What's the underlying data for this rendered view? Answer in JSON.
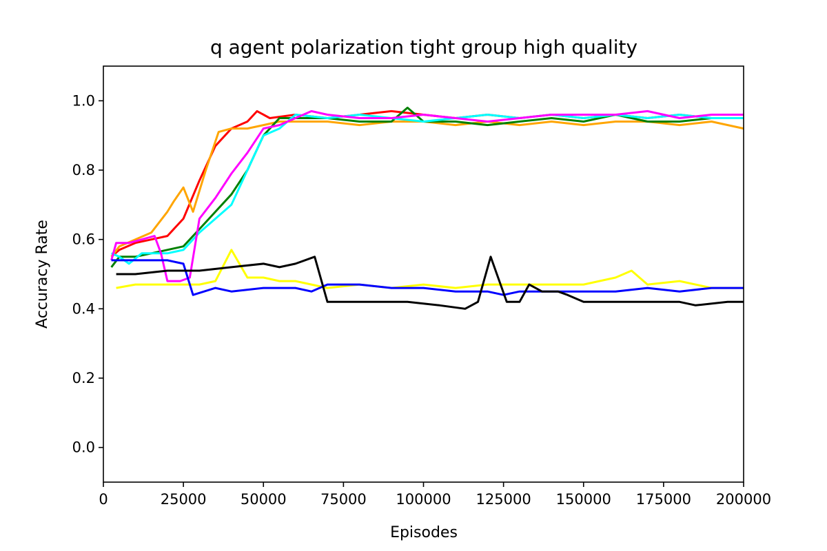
{
  "chart_data": {
    "type": "line",
    "title": "q agent polarization tight group high quality",
    "xlabel": "Episodes",
    "ylabel": "Accuracy Rate",
    "xlim": [
      0,
      200000
    ],
    "ylim": [
      -0.1,
      1.1
    ],
    "xticks": [
      0,
      25000,
      50000,
      75000,
      100000,
      125000,
      150000,
      175000,
      200000
    ],
    "yticks": [
      0.0,
      0.2,
      0.4,
      0.6,
      0.8,
      1.0
    ],
    "grid": false,
    "series": [
      {
        "color": "#ff0000",
        "x": [
          2500,
          5000,
          10000,
          15000,
          20000,
          25000,
          30000,
          35000,
          40000,
          45000,
          48000,
          52000,
          60000,
          70000,
          80000,
          90000,
          100000,
          110000,
          120000,
          130000,
          140000,
          150000,
          160000,
          170000,
          180000,
          190000,
          200000
        ],
        "y": [
          0.55,
          0.57,
          0.59,
          0.6,
          0.61,
          0.66,
          0.77,
          0.87,
          0.92,
          0.94,
          0.97,
          0.95,
          0.96,
          0.95,
          0.96,
          0.97,
          0.96,
          0.95,
          0.96,
          0.95,
          0.96,
          0.95,
          0.96,
          0.95,
          0.96,
          0.95,
          0.95
        ]
      },
      {
        "color": "#ffa500",
        "x": [
          2500,
          5000,
          10000,
          15000,
          20000,
          22000,
          25000,
          28000,
          32000,
          36000,
          40000,
          45000,
          50000,
          55000,
          60000,
          70000,
          80000,
          90000,
          100000,
          110000,
          120000,
          130000,
          140000,
          150000,
          160000,
          170000,
          180000,
          190000,
          200000
        ],
        "y": [
          0.55,
          0.58,
          0.6,
          0.62,
          0.68,
          0.71,
          0.75,
          0.68,
          0.8,
          0.91,
          0.92,
          0.92,
          0.93,
          0.94,
          0.94,
          0.94,
          0.93,
          0.94,
          0.94,
          0.93,
          0.94,
          0.93,
          0.94,
          0.93,
          0.94,
          0.94,
          0.93,
          0.94,
          0.92
        ]
      },
      {
        "color": "#008000",
        "x": [
          2500,
          5000,
          10000,
          15000,
          20000,
          25000,
          30000,
          35000,
          40000,
          45000,
          50000,
          55000,
          60000,
          70000,
          80000,
          90000,
          95000,
          100000,
          110000,
          120000,
          130000,
          140000,
          150000,
          160000,
          170000,
          180000,
          190000,
          200000
        ],
        "y": [
          0.52,
          0.55,
          0.55,
          0.56,
          0.57,
          0.58,
          0.63,
          0.68,
          0.73,
          0.8,
          0.9,
          0.95,
          0.95,
          0.95,
          0.94,
          0.94,
          0.98,
          0.94,
          0.94,
          0.93,
          0.94,
          0.95,
          0.94,
          0.96,
          0.94,
          0.94,
          0.95,
          0.95
        ]
      },
      {
        "color": "#00ffff",
        "x": [
          2500,
          5000,
          8000,
          12000,
          15000,
          20000,
          25000,
          30000,
          35000,
          40000,
          45000,
          50000,
          55000,
          60000,
          70000,
          80000,
          90000,
          100000,
          110000,
          120000,
          130000,
          140000,
          150000,
          160000,
          170000,
          180000,
          190000,
          200000
        ],
        "y": [
          0.56,
          0.55,
          0.53,
          0.56,
          0.56,
          0.56,
          0.57,
          0.62,
          0.66,
          0.7,
          0.8,
          0.9,
          0.92,
          0.96,
          0.95,
          0.96,
          0.95,
          0.94,
          0.95,
          0.96,
          0.95,
          0.96,
          0.95,
          0.96,
          0.95,
          0.96,
          0.95,
          0.95
        ]
      },
      {
        "color": "#ff00ff",
        "x": [
          2500,
          4000,
          8000,
          12000,
          16000,
          18000,
          20000,
          24000,
          27000,
          30000,
          35000,
          40000,
          45000,
          50000,
          55000,
          60000,
          65000,
          70000,
          80000,
          90000,
          100000,
          110000,
          120000,
          130000,
          140000,
          150000,
          160000,
          170000,
          180000,
          190000,
          200000
        ],
        "y": [
          0.54,
          0.59,
          0.59,
          0.6,
          0.61,
          0.56,
          0.48,
          0.48,
          0.49,
          0.66,
          0.72,
          0.79,
          0.85,
          0.92,
          0.93,
          0.95,
          0.97,
          0.96,
          0.95,
          0.95,
          0.96,
          0.95,
          0.94,
          0.95,
          0.96,
          0.96,
          0.96,
          0.97,
          0.95,
          0.96,
          0.96
        ]
      },
      {
        "color": "#ffff00",
        "x": [
          4000,
          10000,
          20000,
          30000,
          35000,
          40000,
          45000,
          50000,
          55000,
          60000,
          70000,
          80000,
          90000,
          100000,
          110000,
          120000,
          130000,
          140000,
          150000,
          160000,
          165000,
          170000,
          180000,
          190000,
          200000
        ],
        "y": [
          0.46,
          0.47,
          0.47,
          0.47,
          0.48,
          0.57,
          0.49,
          0.49,
          0.48,
          0.48,
          0.46,
          0.47,
          0.46,
          0.47,
          0.46,
          0.47,
          0.47,
          0.47,
          0.47,
          0.49,
          0.51,
          0.47,
          0.48,
          0.46,
          0.46
        ]
      },
      {
        "color": "#0000ff",
        "x": [
          2500,
          5000,
          10000,
          15000,
          20000,
          25000,
          28000,
          35000,
          40000,
          50000,
          60000,
          65000,
          70000,
          80000,
          90000,
          100000,
          110000,
          120000,
          125000,
          130000,
          140000,
          150000,
          160000,
          170000,
          180000,
          190000,
          200000
        ],
        "y": [
          0.54,
          0.54,
          0.54,
          0.54,
          0.54,
          0.53,
          0.44,
          0.46,
          0.45,
          0.46,
          0.46,
          0.45,
          0.47,
          0.47,
          0.46,
          0.46,
          0.45,
          0.45,
          0.44,
          0.45,
          0.45,
          0.45,
          0.45,
          0.46,
          0.45,
          0.46,
          0.46
        ]
      },
      {
        "color": "#000000",
        "x": [
          4000,
          10000,
          20000,
          30000,
          40000,
          50000,
          55000,
          60000,
          66000,
          70000,
          75000,
          85000,
          95000,
          105000,
          113000,
          117000,
          121000,
          126000,
          130000,
          133000,
          137000,
          142000,
          145000,
          150000,
          165000,
          180000,
          185000,
          195000,
          200000
        ],
        "y": [
          0.5,
          0.5,
          0.51,
          0.51,
          0.52,
          0.53,
          0.52,
          0.53,
          0.55,
          0.42,
          0.42,
          0.42,
          0.42,
          0.41,
          0.4,
          0.42,
          0.55,
          0.42,
          0.42,
          0.47,
          0.45,
          0.45,
          0.44,
          0.42,
          0.42,
          0.42,
          0.41,
          0.42,
          0.42
        ]
      }
    ]
  }
}
